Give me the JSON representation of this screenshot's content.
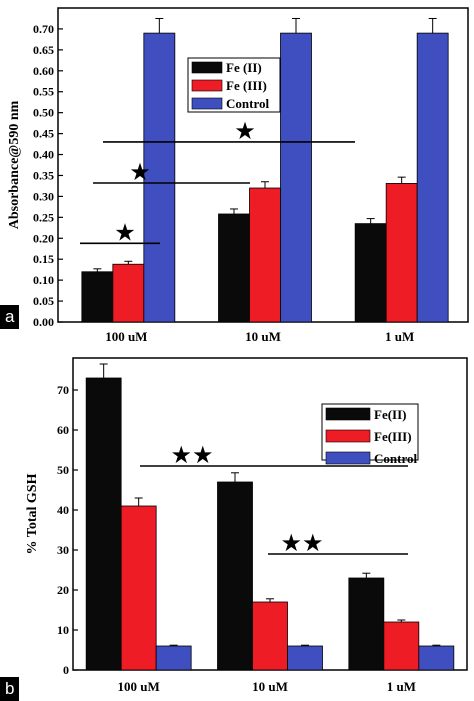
{
  "colors": {
    "fe2": "#0a0a0a",
    "fe3": "#ee1c24",
    "control": "#3f4fbf",
    "axis": "#000000",
    "panel_label_bg": "#000000"
  },
  "chart_data": [
    {
      "panel_label": "a",
      "type": "bar",
      "ylabel": "Absorbance@590 nm",
      "xlabel": "",
      "categories": [
        "100 uM",
        "10 uM",
        "1 uM"
      ],
      "ylim": [
        0,
        0.75
      ],
      "yticks": [
        "0.00",
        "0.05",
        "0.10",
        "0.15",
        "0.20",
        "0.25",
        "0.30",
        "0.35",
        "0.40",
        "0.45",
        "0.50",
        "0.55",
        "0.60",
        "0.65",
        "0.70"
      ],
      "legend_position": "top-center",
      "series": [
        {
          "name": "Fe (II)",
          "color_key": "fe2",
          "values": [
            0.12,
            0.258,
            0.235
          ],
          "errors": [
            0.007,
            0.012,
            0.012
          ]
        },
        {
          "name": "Fe (III)",
          "color_key": "fe3",
          "values": [
            0.138,
            0.32,
            0.331
          ],
          "errors": [
            0.007,
            0.015,
            0.015
          ]
        },
        {
          "name": "Control",
          "color_key": "control",
          "values": [
            0.69,
            0.69,
            0.69
          ],
          "errors": [
            0.035,
            0.035,
            0.035
          ]
        }
      ],
      "annotations": [
        {
          "symbol": "★",
          "line_y": 0.188,
          "x_from": "100 uM",
          "x_to": "100 uM"
        },
        {
          "symbol": "★",
          "line_y": 0.332,
          "x_from": "100 uM",
          "x_to": "10 uM"
        },
        {
          "symbol": "★",
          "line_y": 0.43,
          "x_from": "100 uM",
          "x_to": "1 uM"
        }
      ]
    },
    {
      "panel_label": "b",
      "type": "bar",
      "ylabel": "% Total GSH",
      "xlabel": "",
      "categories": [
        "100 uM",
        "10 uM",
        "1 uM"
      ],
      "ylim": [
        0,
        78
      ],
      "yticks": [
        "0",
        "10",
        "20",
        "30",
        "40",
        "50",
        "60",
        "70"
      ],
      "legend_position": "top-right",
      "series": [
        {
          "name": "Fe(II)",
          "color_key": "fe2",
          "values": [
            73,
            47,
            23
          ],
          "errors": [
            3.5,
            2.3,
            1.2
          ]
        },
        {
          "name": "Fe(III)",
          "color_key": "fe3",
          "values": [
            41,
            17,
            12
          ],
          "errors": [
            2.0,
            0.8,
            0.5
          ]
        },
        {
          "name": "Control",
          "color_key": "control",
          "values": [
            6,
            6,
            6
          ],
          "errors": [
            0.2,
            0.2,
            0.2
          ]
        }
      ],
      "annotations": [
        {
          "symbol": "★★",
          "line_y": 51,
          "x_from": "100 uM",
          "x_to": "1 uM"
        },
        {
          "symbol": "★★",
          "line_y": 29,
          "x_from": "10 uM",
          "x_to": "1 uM"
        }
      ]
    }
  ]
}
